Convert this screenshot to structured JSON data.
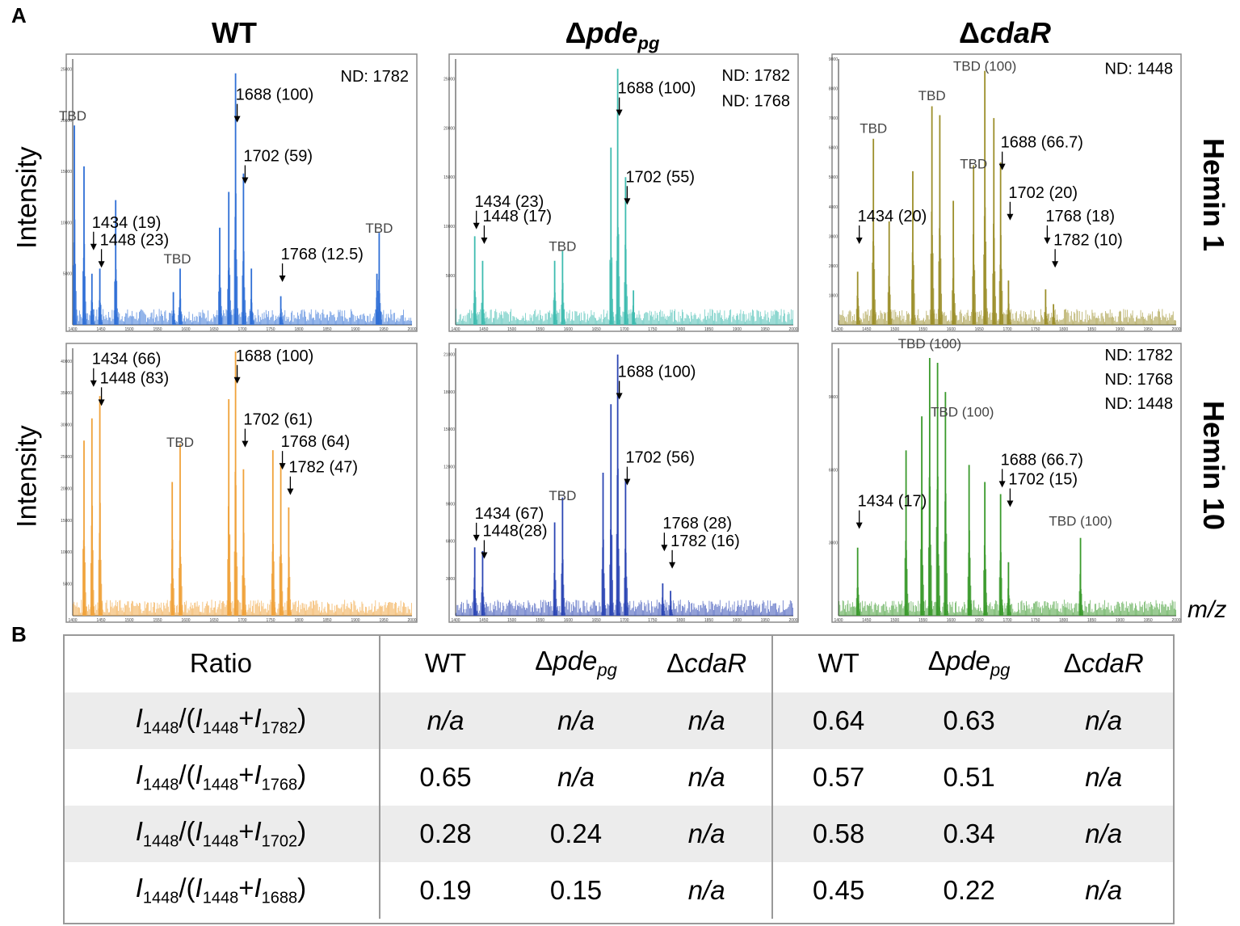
{
  "panel_a": "A",
  "panel_b": "B",
  "columns": [
    {
      "prefix": "Δ",
      "main": "",
      "italic": "pde",
      "sub": "pg"
    }
  ],
  "col_titles": {
    "wt": "WT",
    "pde_delta": "Δ",
    "pde_italic": "pde",
    "pde_sub": "pg",
    "cdar_delta": "Δ",
    "cdar_italic": "cdaR"
  },
  "row_titles": {
    "hemin1": "Hemin 1",
    "hemin10": "Hemin 10"
  },
  "ylabel": "Intensity",
  "xlabel": "m/z",
  "chart_data": [
    {
      "type": "bar",
      "id": "wt_h1",
      "title": "WT – Hemin 1",
      "color": "#2f6fd6",
      "xlim": [
        1400,
        2000
      ],
      "ylim": [
        0,
        26000
      ],
      "xticks": [
        1400,
        1450,
        1500,
        1550,
        1600,
        1650,
        1700,
        1750,
        1800,
        1850,
        1900,
        1950,
        2000
      ],
      "yticks": [
        5000,
        10000,
        15000,
        20000,
        25000
      ],
      "peaks": [
        [
          1403,
          19500
        ],
        [
          1420,
          15500
        ],
        [
          1434,
          5000
        ],
        [
          1448,
          5500
        ],
        [
          1476,
          12200
        ],
        [
          1578,
          3200
        ],
        [
          1590,
          5500
        ],
        [
          1660,
          9500
        ],
        [
          1676,
          13000
        ],
        [
          1688,
          24600
        ],
        [
          1702,
          14800
        ],
        [
          1716,
          5500
        ],
        [
          1768,
          2800
        ],
        [
          1938,
          5000
        ],
        [
          1942,
          9000
        ]
      ],
      "labels": [
        {
          "text": "TBD",
          "x": 1400,
          "y": 20000
        },
        {
          "text": "1688 (100)",
          "x": 1688,
          "y": 22000
        },
        {
          "text": "1702 (59)",
          "x": 1702,
          "y": 16000
        },
        {
          "text": "1434 (19)",
          "x": 1434,
          "y": 9500
        },
        {
          "text": "1448 (23)",
          "x": 1448,
          "y": 7800
        },
        {
          "text": "TBD",
          "x": 1585,
          "y": 6000
        },
        {
          "text": "1768 (12.5)",
          "x": 1768,
          "y": 6400
        },
        {
          "text": "TBD",
          "x": 1942,
          "y": 9000
        },
        {
          "text": "ND: 1782",
          "x": 1920,
          "y": 23800
        }
      ]
    },
    {
      "type": "bar",
      "id": "pde_h1",
      "title": "Δpde_pg – Hemin 1",
      "color": "#3fbcb0",
      "xlim": [
        1400,
        2000
      ],
      "ylim": [
        0,
        27000
      ],
      "xticks": [
        1400,
        1450,
        1500,
        1550,
        1600,
        1650,
        1700,
        1750,
        1800,
        1850,
        1900,
        1950,
        2000
      ],
      "yticks": [
        5000,
        10000,
        15000,
        20000,
        25000
      ],
      "peaks": [
        [
          1434,
          9000
        ],
        [
          1448,
          6500
        ],
        [
          1576,
          6500
        ],
        [
          1590,
          7500
        ],
        [
          1676,
          18000
        ],
        [
          1688,
          26000
        ],
        [
          1702,
          15000
        ],
        [
          1716,
          3500
        ]
      ],
      "labels": [
        {
          "text": "1688 (100)",
          "x": 1688,
          "y": 23500
        },
        {
          "text": "1702 (55)",
          "x": 1702,
          "y": 14500
        },
        {
          "text": "1434 (23)",
          "x": 1434,
          "y": 12000
        },
        {
          "text": "1448 (17)",
          "x": 1448,
          "y": 10500
        },
        {
          "text": "TBD",
          "x": 1590,
          "y": 7500
        },
        {
          "text": "ND: 1782",
          "x": 1930,
          "y": 24800
        },
        {
          "text": "ND: 1768",
          "x": 1930,
          "y": 22200
        }
      ]
    },
    {
      "type": "bar",
      "id": "cdar_h1",
      "title": "ΔcdaR – Hemin 1",
      "color": "#9c8f2b",
      "xlim": [
        1400,
        2000
      ],
      "ylim": [
        0,
        9000
      ],
      "xticks": [
        1400,
        1450,
        1500,
        1550,
        1600,
        1650,
        1700,
        1750,
        1800,
        1850,
        1900,
        1950,
        2000
      ],
      "yticks": [
        1000,
        2000,
        3000,
        4000,
        5000,
        6000,
        7000,
        8000,
        9000
      ],
      "peaks": [
        [
          1434,
          1800
        ],
        [
          1462,
          6300
        ],
        [
          1490,
          3500
        ],
        [
          1532,
          5200
        ],
        [
          1566,
          7400
        ],
        [
          1580,
          7100
        ],
        [
          1604,
          4200
        ],
        [
          1640,
          5400
        ],
        [
          1660,
          8600
        ],
        [
          1676,
          7000
        ],
        [
          1688,
          5500
        ],
        [
          1702,
          1500
        ],
        [
          1768,
          1200
        ],
        [
          1782,
          700
        ]
      ],
      "labels": [
        {
          "text": "TBD (100)",
          "x": 1660,
          "y": 8600
        },
        {
          "text": "TBD",
          "x": 1566,
          "y": 7600
        },
        {
          "text": "TBD",
          "x": 1462,
          "y": 6500
        },
        {
          "text": "TBD",
          "x": 1640,
          "y": 5300
        },
        {
          "text": "1688 (66.7)",
          "x": 1688,
          "y": 6000
        },
        {
          "text": "1702 (20)",
          "x": 1702,
          "y": 4300
        },
        {
          "text": "1434 (20)",
          "x": 1434,
          "y": 3500
        },
        {
          "text": "1768 (18)",
          "x": 1768,
          "y": 3500
        },
        {
          "text": "1782 (10)",
          "x": 1782,
          "y": 2700
        },
        {
          "text": "ND: 1448",
          "x": 1930,
          "y": 8500
        }
      ]
    },
    {
      "type": "bar",
      "id": "wt_h10",
      "title": "WT – Hemin 10",
      "color": "#f0a23a",
      "xlim": [
        1400,
        2000
      ],
      "ylim": [
        0,
        42000
      ],
      "xticks": [
        1400,
        1450,
        1500,
        1550,
        1600,
        1650,
        1700,
        1750,
        1800,
        1850,
        1900,
        1950,
        2000
      ],
      "yticks": [
        5000,
        10000,
        15000,
        20000,
        25000,
        30000,
        35000,
        40000
      ],
      "peaks": [
        [
          1420,
          27500
        ],
        [
          1434,
          31000
        ],
        [
          1448,
          34500
        ],
        [
          1576,
          21000
        ],
        [
          1590,
          27000
        ],
        [
          1676,
          34000
        ],
        [
          1688,
          41500
        ],
        [
          1702,
          23000
        ],
        [
          1754,
          26000
        ],
        [
          1768,
          24000
        ],
        [
          1782,
          17000
        ]
      ],
      "labels": [
        {
          "text": "1434 (66)",
          "x": 1434,
          "y": 39500
        },
        {
          "text": "1448 (83)",
          "x": 1448,
          "y": 36500
        },
        {
          "text": "1688 (100)",
          "x": 1688,
          "y": 40000
        },
        {
          "text": "TBD",
          "x": 1590,
          "y": 26500
        },
        {
          "text": "1702 (61)",
          "x": 1702,
          "y": 30000
        },
        {
          "text": "1768 (64)",
          "x": 1768,
          "y": 26500
        },
        {
          "text": "1782 (47)",
          "x": 1782,
          "y": 22500
        }
      ]
    },
    {
      "type": "bar",
      "id": "pde_h10",
      "title": "Δpde_pg – Hemin 10",
      "color": "#2c46b4",
      "xlim": [
        1400,
        2000
      ],
      "ylim": [
        0,
        21500
      ],
      "xticks": [
        1400,
        1450,
        1500,
        1550,
        1600,
        1650,
        1700,
        1750,
        1800,
        1850,
        1900,
        1950,
        2000
      ],
      "yticks": [
        3000,
        6000,
        9000,
        12000,
        15000,
        18000,
        21000
      ],
      "peaks": [
        [
          1434,
          5500
        ],
        [
          1448,
          5200
        ],
        [
          1576,
          7500
        ],
        [
          1590,
          9500
        ],
        [
          1662,
          11500
        ],
        [
          1676,
          17000
        ],
        [
          1688,
          21000
        ],
        [
          1702,
          11000
        ],
        [
          1768,
          2600
        ],
        [
          1782,
          2000
        ]
      ],
      "labels": [
        {
          "text": "1688 (100)",
          "x": 1688,
          "y": 19200
        },
        {
          "text": "1702 (56)",
          "x": 1702,
          "y": 12300
        },
        {
          "text": "TBD",
          "x": 1590,
          "y": 9300
        },
        {
          "text": "1434 (67)",
          "x": 1434,
          "y": 7800
        },
        {
          "text": "1448(28)",
          "x": 1448,
          "y": 6400
        },
        {
          "text": "1768 (28)",
          "x": 1768,
          "y": 7000
        },
        {
          "text": "1782 (16)",
          "x": 1782,
          "y": 5600
        }
      ]
    },
    {
      "type": "bar",
      "id": "cdar_h10",
      "title": "ΔcdaR – Hemin 10",
      "color": "#3a9a2c",
      "xlim": [
        1400,
        2000
      ],
      "ylim": [
        0,
        11000
      ],
      "xticks": [
        1400,
        1450,
        1500,
        1550,
        1600,
        1650,
        1700,
        1750,
        1800,
        1850,
        1900,
        1950,
        2000
      ],
      "yticks": [
        3000,
        6000,
        9000
      ],
      "peaks": [
        [
          1434,
          2800
        ],
        [
          1520,
          6800
        ],
        [
          1548,
          8200
        ],
        [
          1562,
          10600
        ],
        [
          1576,
          10400
        ],
        [
          1590,
          9200
        ],
        [
          1632,
          6200
        ],
        [
          1660,
          5500
        ],
        [
          1688,
          5000
        ],
        [
          1702,
          2200
        ],
        [
          1830,
          3200
        ]
      ],
      "labels": [
        {
          "text": "TBD (100)",
          "x": 1562,
          "y": 11000
        },
        {
          "text": "TBD (100)",
          "x": 1620,
          "y": 8200
        },
        {
          "text": "1688 (66.7)",
          "x": 1688,
          "y": 6200
        },
        {
          "text": "1702 (15)",
          "x": 1702,
          "y": 5400
        },
        {
          "text": "1434 (17)",
          "x": 1434,
          "y": 4500
        },
        {
          "text": "TBD (100)",
          "x": 1830,
          "y": 3700
        },
        {
          "text": "ND: 1782",
          "x": 1930,
          "y": 10500
        },
        {
          "text": "ND: 1768",
          "x": 1930,
          "y": 9500
        },
        {
          "text": "ND: 1448",
          "x": 1930,
          "y": 8500
        }
      ]
    }
  ],
  "table": {
    "ratio_header": "Ratio",
    "groups": [
      "WT",
      "Δpde_pg",
      "ΔcdaR",
      "WT",
      "Δpde_pg",
      "ΔcdaR"
    ],
    "rows": [
      {
        "denom": "1782",
        "values": [
          "n/a",
          "n/a",
          "n/a",
          "0.64",
          "0.63",
          "n/a"
        ]
      },
      {
        "denom": "1768",
        "values": [
          "0.65",
          "n/a",
          "n/a",
          "0.57",
          "0.51",
          "n/a"
        ]
      },
      {
        "denom": "1702",
        "values": [
          "0.28",
          "0.24",
          "n/a",
          "0.58",
          "0.34",
          "n/a"
        ]
      },
      {
        "denom": "1688",
        "values": [
          "0.19",
          "0.15",
          "n/a",
          "0.45",
          "0.22",
          "n/a"
        ]
      }
    ],
    "ratio_num": "1448"
  }
}
